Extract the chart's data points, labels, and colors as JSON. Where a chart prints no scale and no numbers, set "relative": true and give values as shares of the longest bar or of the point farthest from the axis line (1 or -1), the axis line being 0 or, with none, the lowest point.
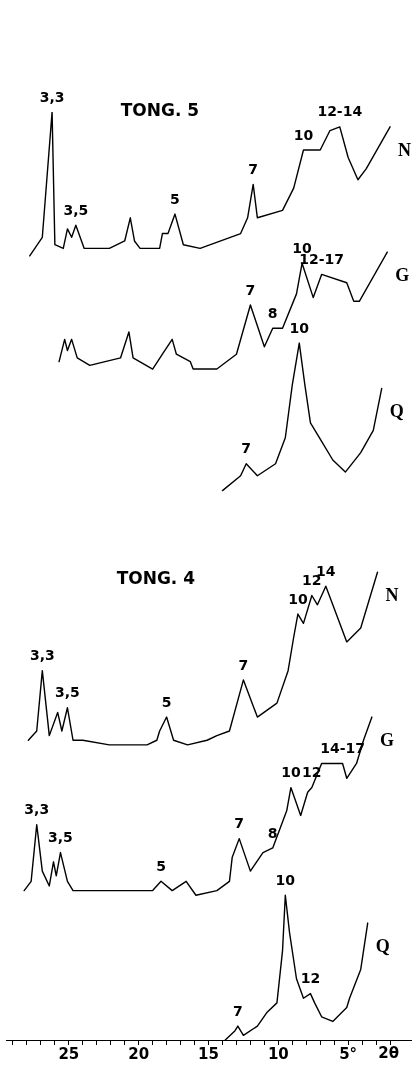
{
  "chart_data": {
    "type": "line",
    "relative": true,
    "xlim": [
      29.5,
      0.5
    ],
    "xlabel": "2θ",
    "legend": false,
    "marker": "none",
    "line_style": "solid",
    "xticks": [
      {
        "value": 29,
        "label": null
      },
      {
        "value": 28,
        "label": null
      },
      {
        "value": 27,
        "label": null
      },
      {
        "value": 26,
        "label": null
      },
      25,
      {
        "value": 24,
        "label": null
      },
      {
        "value": 23,
        "label": null
      },
      {
        "value": 22,
        "label": null
      },
      {
        "value": 21,
        "label": null
      },
      20,
      {
        "value": 19,
        "label": null
      },
      {
        "value": 18,
        "label": null
      },
      {
        "value": 17,
        "label": null
      },
      {
        "value": 16,
        "label": null
      },
      15,
      {
        "value": 14,
        "label": null
      },
      {
        "value": 13,
        "label": null
      },
      {
        "value": 12,
        "label": null
      },
      {
        "value": 11,
        "label": null
      },
      10,
      {
        "value": 9,
        "label": null
      },
      {
        "value": 8,
        "label": null
      },
      {
        "value": 7,
        "label": null
      },
      {
        "value": 6,
        "label": null
      },
      {
        "value": 5,
        "label": "5°"
      },
      {
        "value": 4,
        "label": null
      },
      {
        "value": 3,
        "label": null
      },
      {
        "value": 2,
        "label": null
      }
    ],
    "series": [
      {
        "name": "N",
        "color": "#000000",
        "x": [
          27.8,
          26.9,
          26.2,
          26.0,
          25.4,
          25.1,
          24.8,
          24.5,
          23.9,
          22.1,
          21.0,
          20.6,
          20.3,
          19.9,
          18.5,
          18.3,
          17.9,
          17.4,
          16.8,
          15.6,
          12.7,
          12.2,
          11.8,
          11.5,
          9.7,
          8.9,
          8.2,
          7.0,
          6.3,
          5.6,
          5.0,
          4.3,
          3.7,
          2.0
        ],
        "values": [
          0.845,
          0.865,
          1.0,
          0.857,
          0.853,
          0.874,
          0.865,
          0.878,
          0.853,
          0.853,
          0.861,
          0.886,
          0.861,
          0.853,
          0.853,
          0.869,
          0.869,
          0.89,
          0.857,
          0.853,
          0.869,
          0.886,
          0.922,
          0.886,
          0.894,
          0.918,
          0.959,
          0.959,
          0.98,
          0.984,
          0.951,
          0.927,
          0.939,
          0.984
        ]
      },
      {
        "name": "G",
        "color": "#000000",
        "x": [
          25.7,
          25.3,
          25.1,
          24.8,
          24.4,
          23.5,
          21.3,
          20.7,
          20.4,
          19.0,
          18.3,
          17.6,
          17.3,
          16.3,
          16.1,
          14.4,
          13.0,
          12.0,
          11.0,
          10.4,
          9.7,
          8.7,
          8.3,
          7.5,
          6.9,
          5.1,
          4.6,
          4.2,
          2.2
        ],
        "values": [
          0.731,
          0.755,
          0.743,
          0.755,
          0.735,
          0.727,
          0.735,
          0.763,
          0.735,
          0.723,
          0.739,
          0.755,
          0.739,
          0.731,
          0.723,
          0.723,
          0.739,
          0.792,
          0.747,
          0.767,
          0.767,
          0.804,
          0.837,
          0.8,
          0.825,
          0.816,
          0.796,
          0.796,
          0.849
        ]
      },
      {
        "name": "Q",
        "color": "#000000",
        "x": [
          14.0,
          12.7,
          12.3,
          11.5,
          10.2,
          9.5,
          9.0,
          8.5,
          8.1,
          7.7,
          6.9,
          6.1,
          5.2,
          4.1,
          3.2,
          2.6
        ],
        "values": [
          0.592,
          0.608,
          0.621,
          0.608,
          0.621,
          0.649,
          0.706,
          0.751,
          0.706,
          0.665,
          0.645,
          0.625,
          0.612,
          0.633,
          0.657,
          0.702
        ]
      },
      {
        "name": "N",
        "color": "#000000",
        "x": [
          27.9,
          27.3,
          26.9,
          26.4,
          25.8,
          25.5,
          25.1,
          24.7,
          24.0,
          22.1,
          19.4,
          18.7,
          18.5,
          18.0,
          17.5,
          16.5,
          15.1,
          14.4,
          13.5,
          12.5,
          11.5,
          10.1,
          9.3,
          8.9,
          8.6,
          8.2,
          7.6,
          7.2,
          6.6,
          6.1,
          5.1,
          4.1,
          2.9
        ],
        "values": [
          0.323,
          0.333,
          0.398,
          0.328,
          0.353,
          0.333,
          0.358,
          0.323,
          0.323,
          0.318,
          0.318,
          0.323,
          0.333,
          0.348,
          0.323,
          0.318,
          0.323,
          0.328,
          0.333,
          0.388,
          0.348,
          0.363,
          0.398,
          0.434,
          0.459,
          0.449,
          0.479,
          0.469,
          0.489,
          0.469,
          0.429,
          0.444,
          0.504
        ]
      },
      {
        "name": "G",
        "color": "#000000",
        "x": [
          28.2,
          27.7,
          27.3,
          26.9,
          26.4,
          26.1,
          25.9,
          25.6,
          25.1,
          24.7,
          22.3,
          20.4,
          19.0,
          18.4,
          17.6,
          16.6,
          15.9,
          14.4,
          13.5,
          13.3,
          12.8,
          12.0,
          11.1,
          10.4,
          9.4,
          9.1,
          8.4,
          7.9,
          7.6,
          6.9,
          5.4,
          5.1,
          4.4,
          3.9,
          3.3
        ],
        "values": [
          0.161,
          0.171,
          0.232,
          0.182,
          0.166,
          0.192,
          0.177,
          0.202,
          0.171,
          0.161,
          0.161,
          0.161,
          0.161,
          0.171,
          0.161,
          0.171,
          0.156,
          0.161,
          0.171,
          0.197,
          0.217,
          0.182,
          0.202,
          0.207,
          0.247,
          0.272,
          0.242,
          0.267,
          0.272,
          0.298,
          0.298,
          0.282,
          0.298,
          0.323,
          0.348
        ]
      },
      {
        "name": "Q",
        "color": "#000000",
        "x": [
          13.8,
          13.1,
          12.9,
          12.5,
          11.5,
          10.8,
          10.1,
          9.7,
          9.5,
          9.2,
          8.7,
          8.2,
          7.7,
          7.4,
          6.9,
          6.1,
          5.1,
          4.9,
          4.1,
          3.6
        ],
        "values": [
          0.0,
          0.01,
          0.015,
          0.005,
          0.015,
          0.03,
          0.04,
          0.096,
          0.156,
          0.116,
          0.066,
          0.045,
          0.05,
          0.04,
          0.025,
          0.02,
          0.035,
          0.045,
          0.076,
          0.126
        ]
      }
    ],
    "annotations": [
      "TONG. 5",
      "TONG. 4",
      {
        "text": "3,3",
        "x": 26.2,
        "y": 1.0
      },
      {
        "text": "3,5",
        "x": 24.5,
        "y": 0.878
      },
      {
        "text": "5",
        "x": 17.4,
        "y": 0.89
      },
      {
        "text": "7",
        "x": 11.8,
        "y": 0.922
      },
      {
        "text": "10",
        "x": 8.2,
        "y": 0.959
      },
      {
        "text": "12-14",
        "x": 5.6,
        "y": 0.984
      },
      {
        "text": "7",
        "x": 12.0,
        "y": 0.792
      },
      {
        "text": "8",
        "x": 10.4,
        "y": 0.767
      },
      {
        "text": "10",
        "x": 8.3,
        "y": 0.837
      },
      {
        "text": "12-17",
        "x": 6.9,
        "y": 0.825
      },
      {
        "text": "7",
        "x": 12.3,
        "y": 0.621
      },
      {
        "text": "10",
        "x": 8.5,
        "y": 0.751
      },
      {
        "text": "3,3",
        "x": 26.9,
        "y": 0.398
      },
      {
        "text": "3,5",
        "x": 25.1,
        "y": 0.358
      },
      {
        "text": "5",
        "x": 18.0,
        "y": 0.348
      },
      {
        "text": "7",
        "x": 12.5,
        "y": 0.388
      },
      {
        "text": "10",
        "x": 8.6,
        "y": 0.459
      },
      {
        "text": "12",
        "x": 7.6,
        "y": 0.479
      },
      {
        "text": "14",
        "x": 6.6,
        "y": 0.489
      },
      {
        "text": "3,3",
        "x": 27.3,
        "y": 0.232
      },
      {
        "text": "3,5",
        "x": 25.6,
        "y": 0.202
      },
      {
        "text": "5",
        "x": 18.4,
        "y": 0.171
      },
      {
        "text": "7",
        "x": 12.8,
        "y": 0.217
      },
      {
        "text": "8",
        "x": 10.4,
        "y": 0.207
      },
      {
        "text": "10",
        "x": 9.1,
        "y": 0.272
      },
      {
        "text": "12",
        "x": 7.6,
        "y": 0.272
      },
      {
        "text": "14-17",
        "x": 5.4,
        "y": 0.298
      },
      {
        "text": "7",
        "x": 12.9,
        "y": 0.015
      },
      {
        "text": "10",
        "x": 9.5,
        "y": 0.156
      },
      {
        "text": "12",
        "x": 7.7,
        "y": 0.05
      }
    ]
  }
}
